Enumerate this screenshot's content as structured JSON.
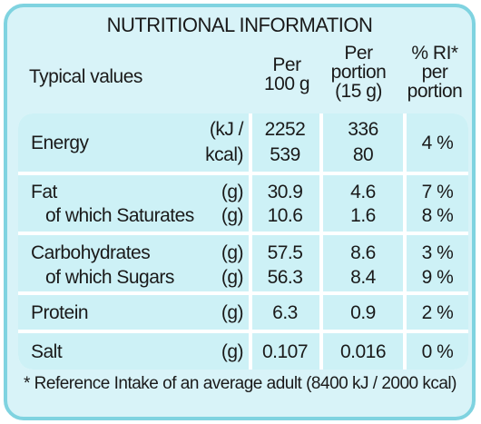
{
  "title": "NUTRITIONAL INFORMATION",
  "headers": {
    "typical": "Typical values",
    "per100_l1": "Per",
    "per100_l2": "100 g",
    "portion_l1": "Per",
    "portion_l2": "portion",
    "portion_l3": "(15 g)",
    "ri_l1": "% RI*",
    "ri_l2": "per",
    "ri_l3": "portion"
  },
  "rows": [
    {
      "label": "Energy",
      "unit1": "(kJ /",
      "unit2": "kcal)",
      "v100_1": "2252",
      "v100_2": "539",
      "vp_1": "336",
      "vp_2": "80",
      "ri": "4 %"
    },
    {
      "label": "Fat",
      "unit": "(g)",
      "v100": "30.9",
      "vp": "4.6",
      "ri": "7 %"
    },
    {
      "label": "of which Saturates",
      "unit": "(g)",
      "v100": "10.6",
      "vp": "1.6",
      "ri": "8 %"
    },
    {
      "label": "Carbohydrates",
      "unit": "(g)",
      "v100": "57.5",
      "vp": "8.6",
      "ri": "3 %"
    },
    {
      "label": "of which Sugars",
      "unit": "(g)",
      "v100": "56.3",
      "vp": "8.4",
      "ri": "9 %"
    },
    {
      "label": "Protein",
      "unit": "(g)",
      "v100": "6.3",
      "vp": "0.9",
      "ri": "2 %"
    },
    {
      "label": "Salt",
      "unit": "(g)",
      "v100": "0.107",
      "vp": "0.016",
      "ri": "0 %"
    }
  ],
  "footnote": "* Reference Intake of an average adult (8400 kJ / 2000 kcal)",
  "colors": {
    "border": "#7fd3e0",
    "panel": "#d8f3f8",
    "row": "#cdf1f6"
  }
}
